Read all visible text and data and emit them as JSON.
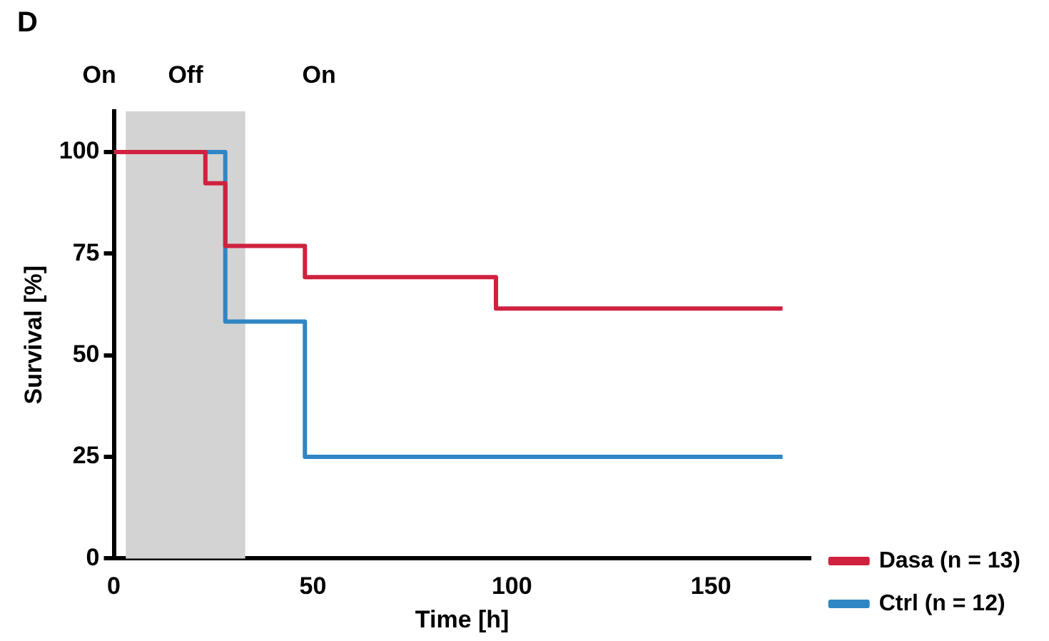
{
  "chart_data": {
    "type": "step",
    "title": "D",
    "xlabel": "Time [h]",
    "ylabel": "Survival [%]",
    "series": [
      {
        "name": "Dasa (n = 13)",
        "color": "#d0213f",
        "x": [
          0,
          23,
          28,
          48,
          96,
          168
        ],
        "values": [
          100,
          92.3,
          76.9,
          69.2,
          61.5,
          61.5
        ]
      },
      {
        "name": "Ctrl (n = 12)",
        "color": "#2f86c4",
        "x": [
          0,
          28,
          48,
          168
        ],
        "values": [
          100,
          58.3,
          25,
          25
        ]
      }
    ],
    "bands": [
      {
        "axis": "x",
        "from": 3,
        "to": 33,
        "label": "Off",
        "color": "#d3d3d3"
      }
    ],
    "annotations": [
      "On",
      "On"
    ],
    "xlim": [
      0,
      175
    ],
    "xticks": [
      0,
      50,
      100,
      150
    ],
    "ylim": [
      0,
      110
    ],
    "yticks": [
      0,
      25,
      50,
      75,
      100
    ],
    "grid": false,
    "legend": "bottom right",
    "marker": "none",
    "line_style": "solid"
  }
}
